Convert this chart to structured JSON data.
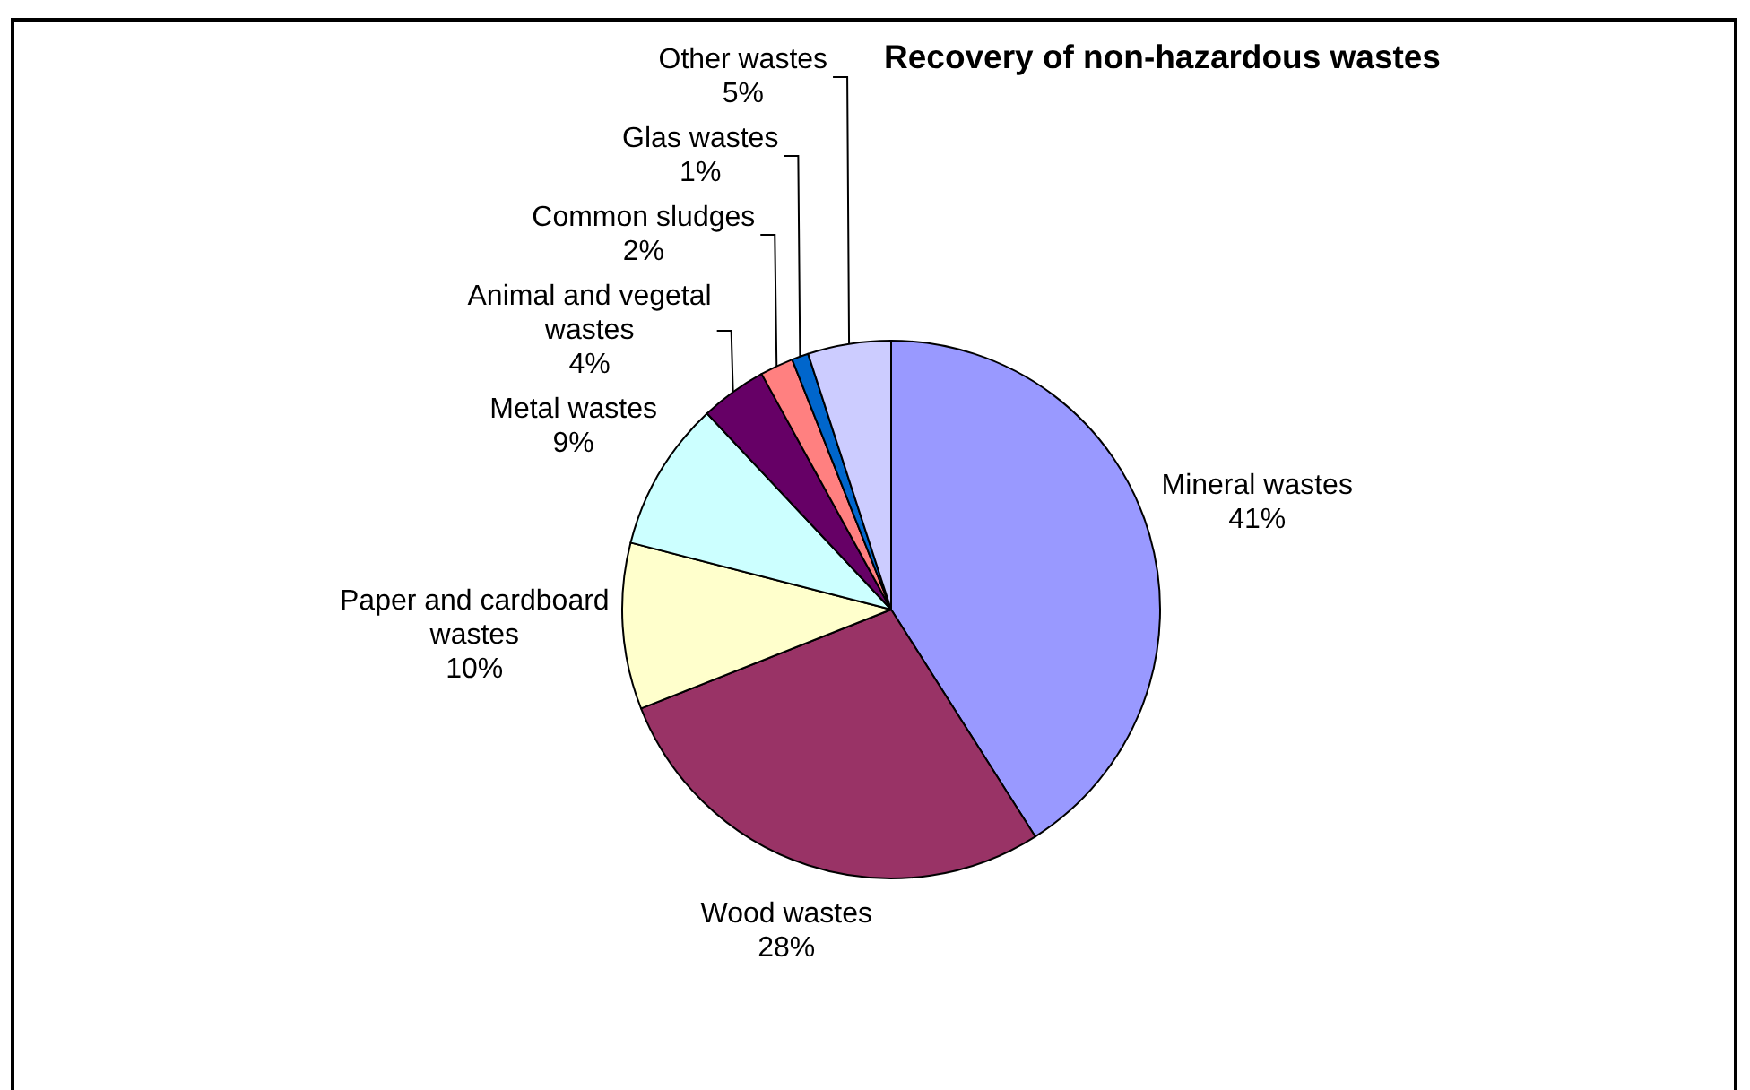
{
  "chart_data": {
    "type": "pie",
    "title": "Recovery of non-hazardous wastes",
    "categories": [
      "Mineral wastes",
      "Wood wastes",
      "Paper and cardboard wastes",
      "Metal wastes",
      "Animal and vegetal wastes",
      "Common sludges",
      "Glas wastes",
      "Other wastes"
    ],
    "values": [
      41,
      28,
      10,
      9,
      4,
      2,
      1,
      5
    ],
    "value_labels": [
      "41%",
      "28%",
      "10%",
      "9%",
      "4%",
      "2%",
      "1%",
      "5%"
    ],
    "colors": [
      "#9999ff",
      "#993366",
      "#ffffcc",
      "#ccffff",
      "#660066",
      "#ff8080",
      "#0066cc",
      "#ccccff"
    ]
  }
}
